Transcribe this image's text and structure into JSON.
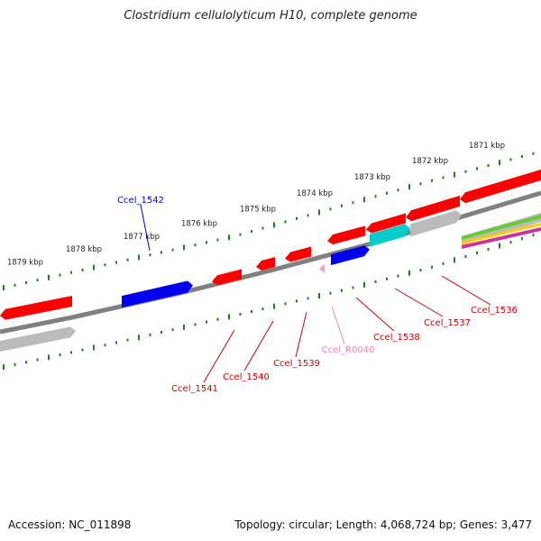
{
  "title": "Clostridium cellulolyticum H10, complete genome",
  "footer": {
    "accession": "Accession: NC_011898",
    "topology": "Topology: circular; Length: 4,068,724 bp; Genes: 3,477"
  },
  "kbp_labels": [
    "1871 kbp",
    "1872 kbp",
    "1873 kbp",
    "1874 kbp",
    "1875 kbp",
    "1876 kbp",
    "1877 kbp",
    "1878 kbp",
    "1879 kbp"
  ],
  "genes": [
    {
      "label": "Ccel_1542",
      "color": "#0000cc"
    },
    {
      "label": "Ccel_1541",
      "color": "#cc0000"
    },
    {
      "label": "Ccel_1540",
      "color": "#cc0000"
    },
    {
      "label": "Ccel_1539",
      "color": "#cc0000"
    },
    {
      "label": "Ccel_R0040",
      "color": "#f080b8"
    },
    {
      "label": "Ccel_1538",
      "color": "#cc0000"
    },
    {
      "label": "Ccel_1537",
      "color": "#cc0000"
    },
    {
      "label": "Ccel_1536",
      "color": "#cc0000"
    }
  ],
  "colors": {
    "backbone": "#808080",
    "tick": "#118811",
    "cds": "#ff0000",
    "rna": "#ff99cc",
    "blue": "#0000ee",
    "cyan": "#00cccc",
    "gray": "#bbbbbb",
    "label_text": "#222222"
  }
}
